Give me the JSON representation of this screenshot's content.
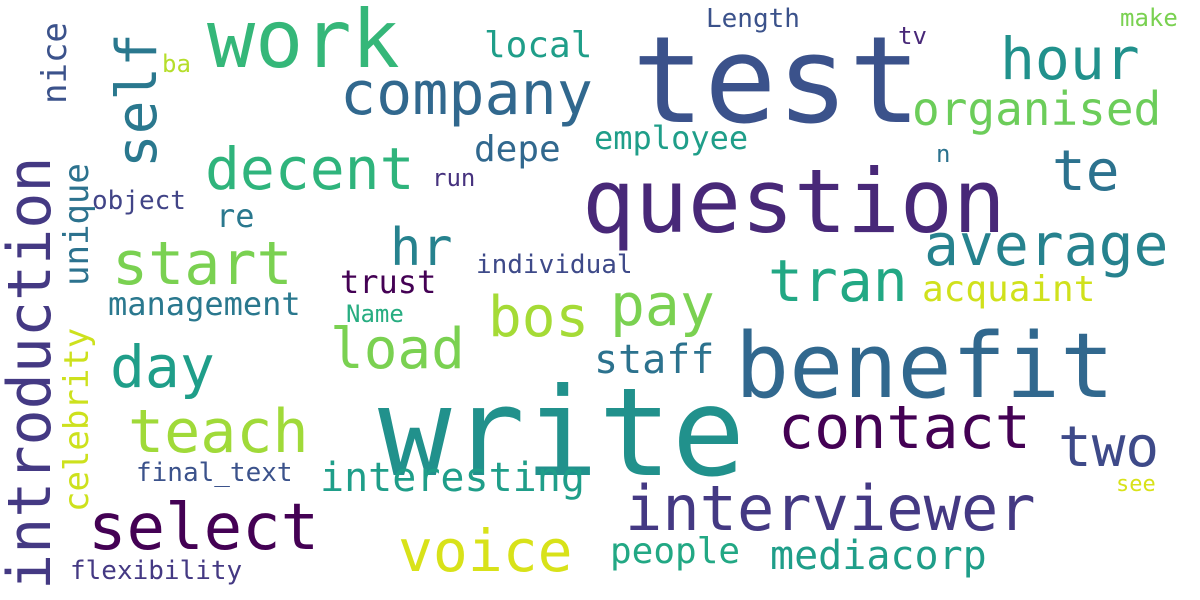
{
  "words": [
    {
      "text": "test",
      "color": "#3b528b"
    },
    {
      "text": "write",
      "color": "#21918c"
    },
    {
      "text": "question",
      "color": "#482878"
    },
    {
      "text": "benefit",
      "color": "#31688e"
    },
    {
      "text": "work",
      "color": "#35b779"
    },
    {
      "text": "company",
      "color": "#31688e"
    },
    {
      "text": "introduction",
      "color": "#443983"
    },
    {
      "text": "interviewer",
      "color": "#443983"
    },
    {
      "text": "select",
      "color": "#440154"
    },
    {
      "text": "contact",
      "color": "#440154"
    },
    {
      "text": "voice",
      "color": "#d8e219"
    },
    {
      "text": "average",
      "color": "#26828e"
    },
    {
      "text": "decent",
      "color": "#2fb47c"
    },
    {
      "text": "teach",
      "color": "#a0da39"
    },
    {
      "text": "start",
      "color": "#7ad151"
    },
    {
      "text": "hour",
      "color": "#21918c"
    },
    {
      "text": "self",
      "color": "#2a788e"
    },
    {
      "text": "two",
      "color": "#3e4a89"
    },
    {
      "text": "tran",
      "color": "#22a884"
    },
    {
      "text": "pay",
      "color": "#7ad151"
    },
    {
      "text": "bos",
      "color": "#a5db36"
    },
    {
      "text": "load",
      "color": "#7ad151"
    },
    {
      "text": "day",
      "color": "#1f9e89"
    },
    {
      "text": "hr",
      "color": "#26828e"
    },
    {
      "text": "organised",
      "color": "#6ccd5a"
    },
    {
      "text": "te",
      "color": "#2c728e"
    },
    {
      "text": "mediacorp",
      "color": "#1f9e89"
    },
    {
      "text": "people",
      "color": "#22a884"
    },
    {
      "text": "interesting",
      "color": "#1f9e89"
    },
    {
      "text": "staff",
      "color": "#2c728e"
    },
    {
      "text": "acquaint",
      "color": "#d0e11c"
    },
    {
      "text": "management",
      "color": "#2a788e"
    },
    {
      "text": "trust",
      "color": "#440154"
    },
    {
      "text": "unique",
      "color": "#2c728e"
    },
    {
      "text": "celebrity",
      "color": "#cde11d"
    },
    {
      "text": "nice",
      "color": "#3b528b"
    },
    {
      "text": "depe",
      "color": "#31688e"
    },
    {
      "text": "employee",
      "color": "#1f9e89"
    },
    {
      "text": "local",
      "color": "#1f9e89"
    },
    {
      "text": "re",
      "color": "#2a788e"
    },
    {
      "text": "flexibility",
      "color": "#443983"
    },
    {
      "text": "final_text",
      "color": "#3b528b"
    },
    {
      "text": "individual",
      "color": "#3e4a89"
    },
    {
      "text": "object",
      "color": "#414487"
    },
    {
      "text": "run",
      "color": "#46327e"
    },
    {
      "text": "Length",
      "color": "#3b528b"
    },
    {
      "text": "Name",
      "color": "#27ad81"
    },
    {
      "text": "make",
      "color": "#7ad151"
    },
    {
      "text": "tv",
      "color": "#482878"
    },
    {
      "text": "ba",
      "color": "#b5de2b"
    },
    {
      "text": "n",
      "color": "#2c728e"
    },
    {
      "text": "see",
      "color": "#d8e219"
    }
  ]
}
